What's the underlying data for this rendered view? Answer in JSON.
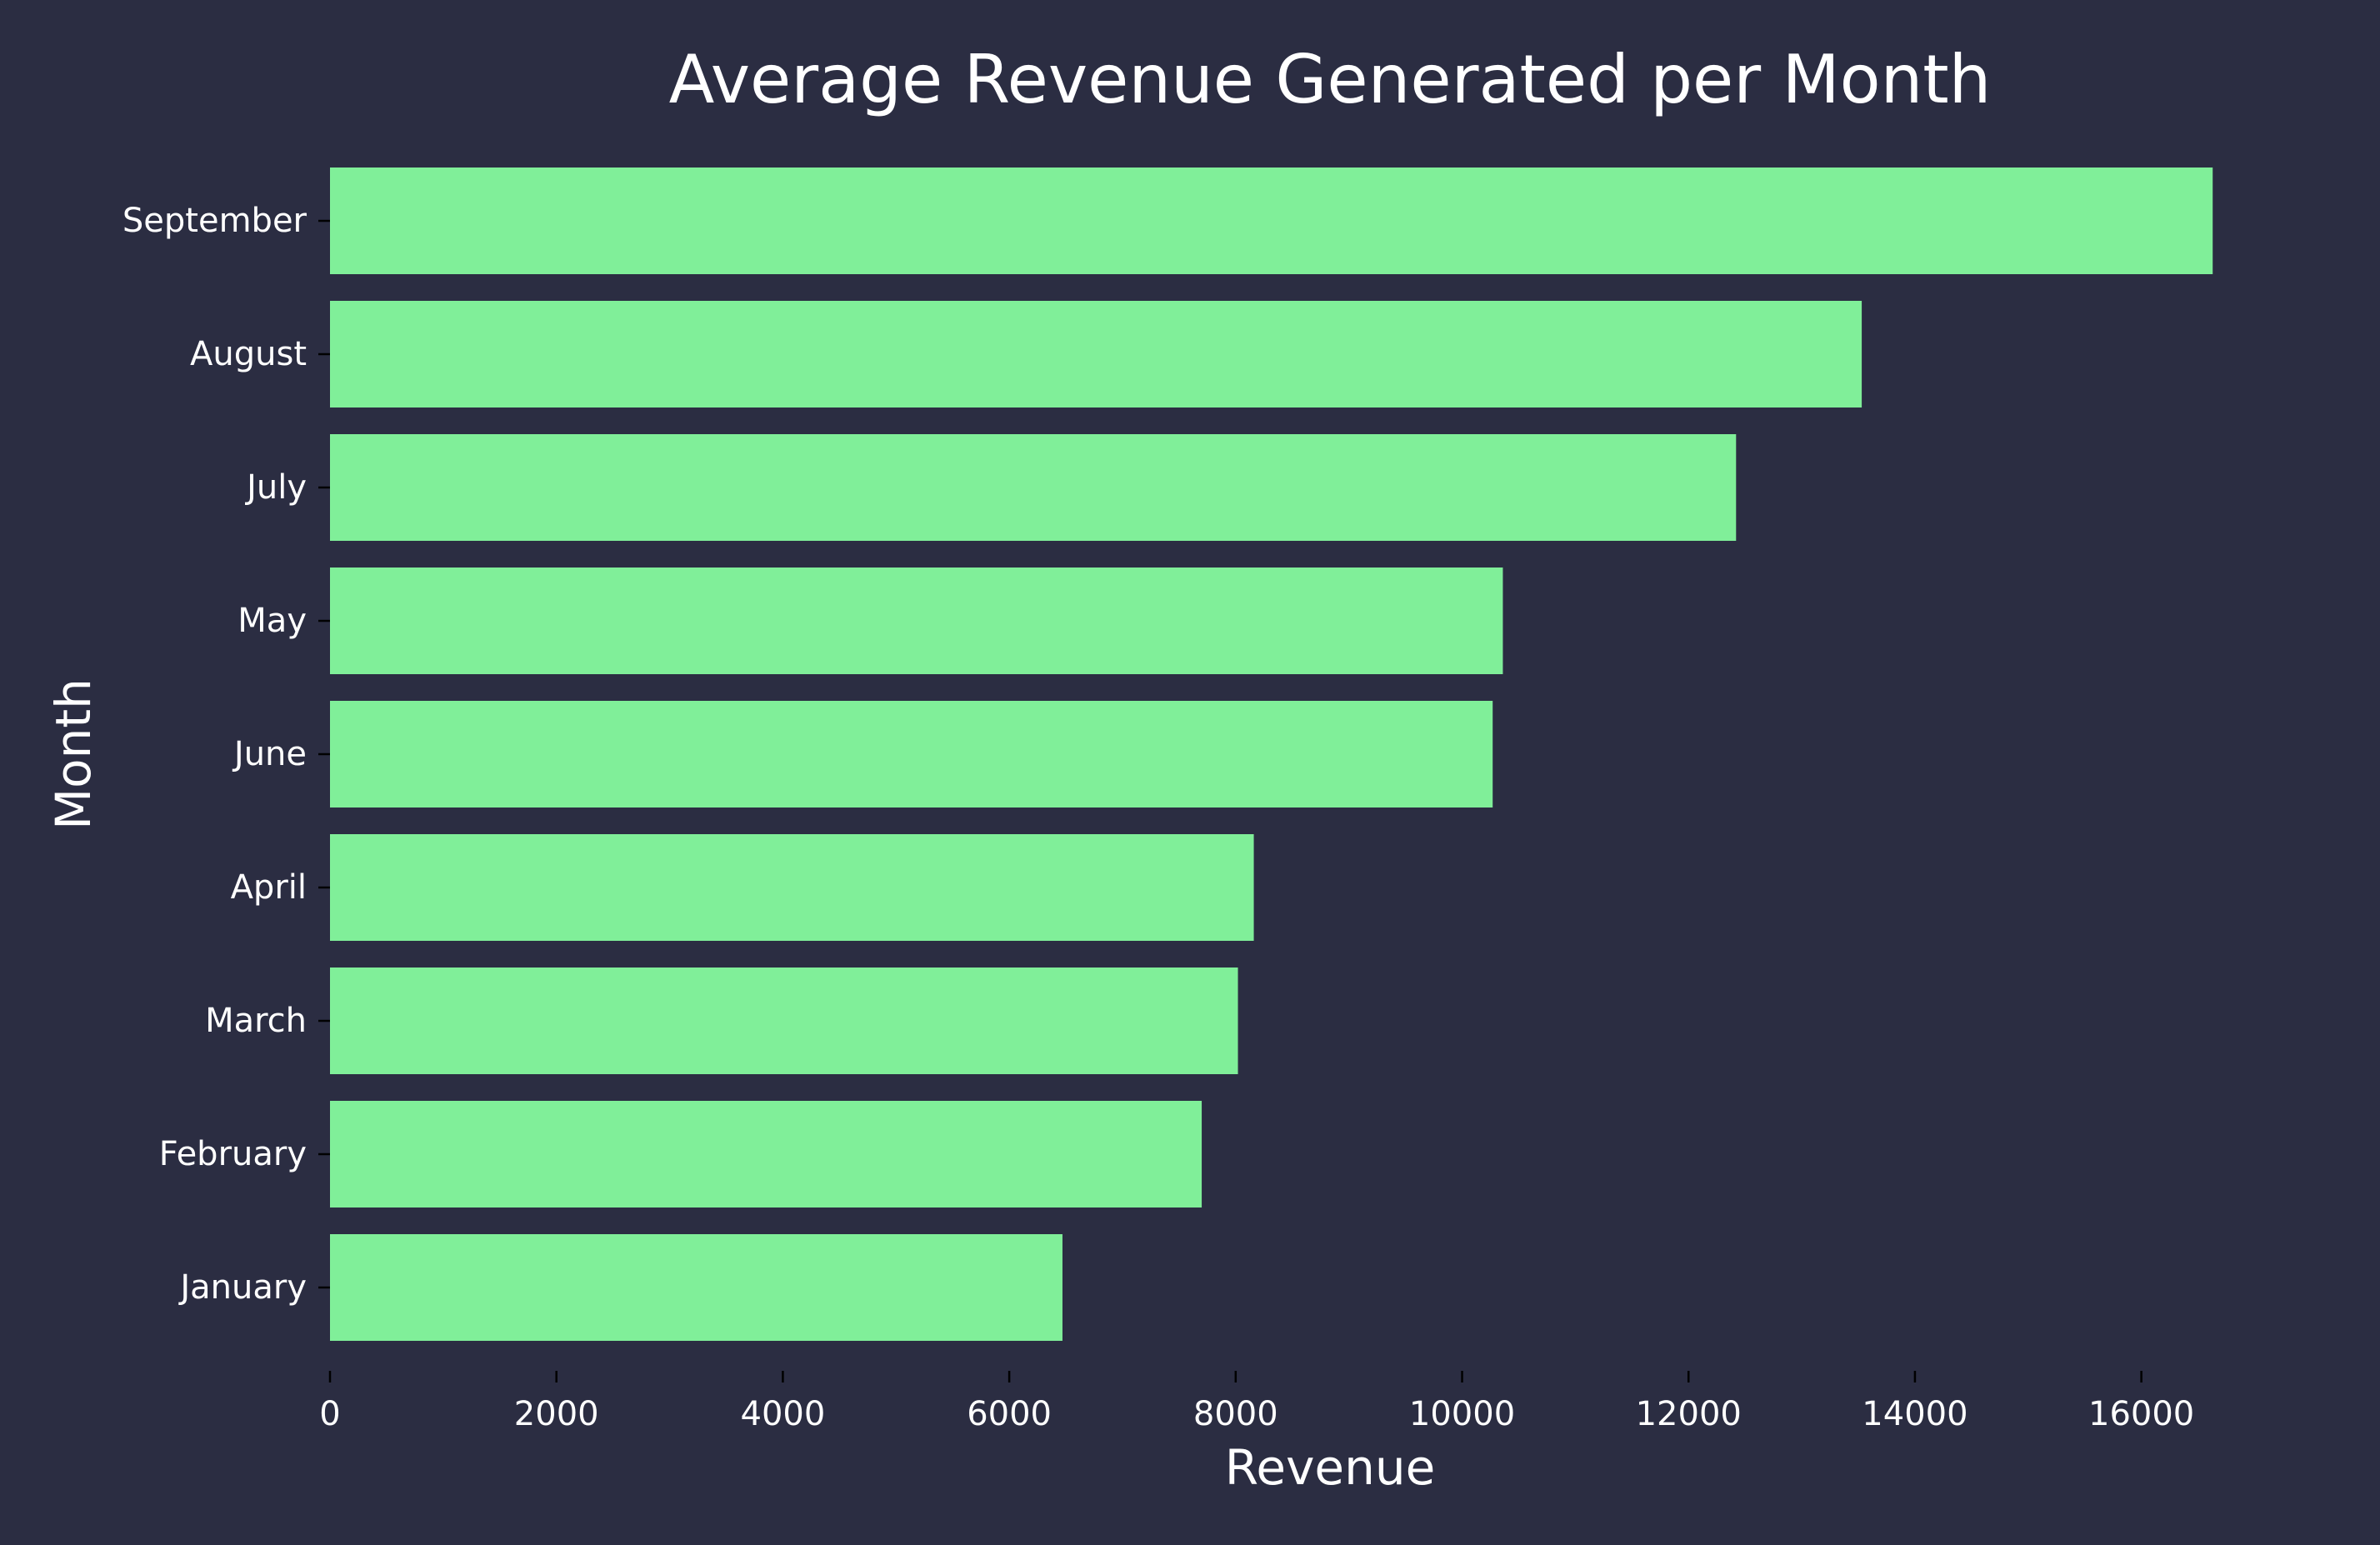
{
  "chart_data": {
    "type": "bar",
    "orientation": "horizontal",
    "title": "Average Revenue Generated per Month",
    "xlabel": "Revenue",
    "ylabel": "Month",
    "categories": [
      "January",
      "February",
      "March",
      "April",
      "June",
      "May",
      "July",
      "August",
      "September"
    ],
    "values": [
      6470,
      7700,
      8020,
      8160,
      10270,
      10360,
      12420,
      13530,
      16630
    ],
    "xlim": [
      0,
      17600
    ],
    "xticks": [
      0,
      2000,
      4000,
      6000,
      8000,
      10000,
      12000,
      14000,
      16000
    ],
    "grid": false,
    "legend": "none",
    "colors": {
      "background": "#2b2d42",
      "bar": "#80ef99",
      "text": "#ffffff",
      "tick": "#000000"
    }
  }
}
